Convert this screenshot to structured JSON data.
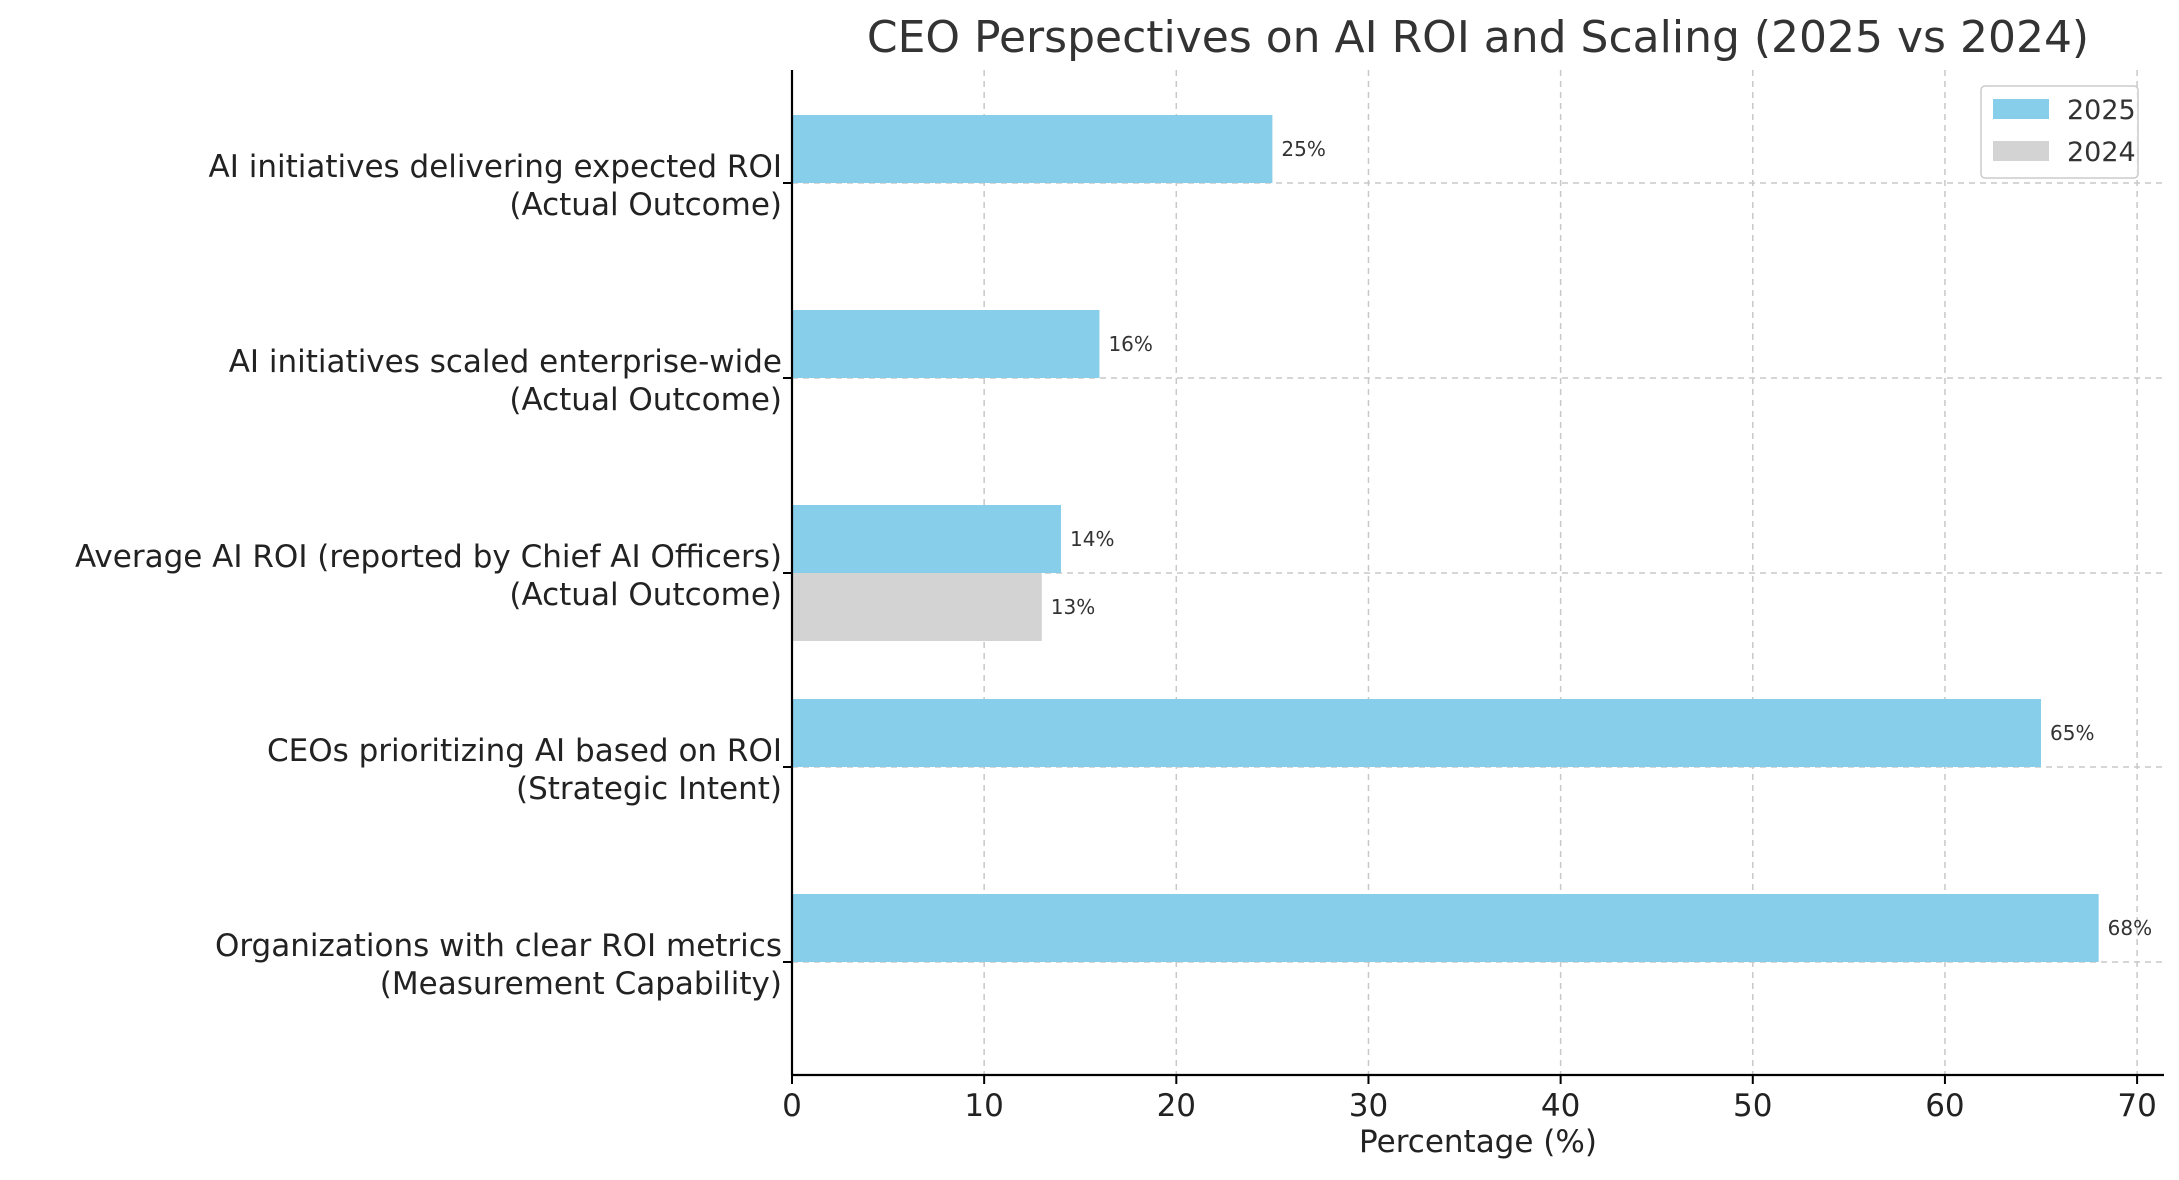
{
  "chart_data": {
    "type": "bar",
    "orientation": "horizontal",
    "title": "CEO Perspectives on AI ROI and Scaling (2025 vs 2024)",
    "xlabel": "Percentage (%)",
    "ylabel": "",
    "xlim": [
      0,
      71.4
    ],
    "xticks": [
      0,
      10,
      20,
      30,
      40,
      50,
      60,
      70
    ],
    "grid": true,
    "legend_position": "top-right",
    "categories": [
      [
        "AI initiatives delivering expected ROI",
        "(Actual Outcome)"
      ],
      [
        "AI initiatives scaled enterprise-wide",
        "(Actual Outcome)"
      ],
      [
        "Average AI ROI (reported by Chief AI Officers)",
        "(Actual Outcome)"
      ],
      [
        "CEOs prioritizing AI based on ROI",
        "(Strategic Intent)"
      ],
      [
        "Organizations with clear ROI metrics",
        "(Measurement Capability)"
      ]
    ],
    "series": [
      {
        "name": "2025",
        "color": "#87CEEB",
        "values": [
          25,
          16,
          14,
          65,
          68
        ],
        "labels": [
          "25%",
          "16%",
          "14%",
          "65%",
          "68%"
        ]
      },
      {
        "name": "2024",
        "color": "#D3D3D3",
        "values": [
          null,
          null,
          13,
          null,
          null
        ],
        "labels": [
          null,
          null,
          "13%",
          null,
          null
        ]
      }
    ]
  }
}
